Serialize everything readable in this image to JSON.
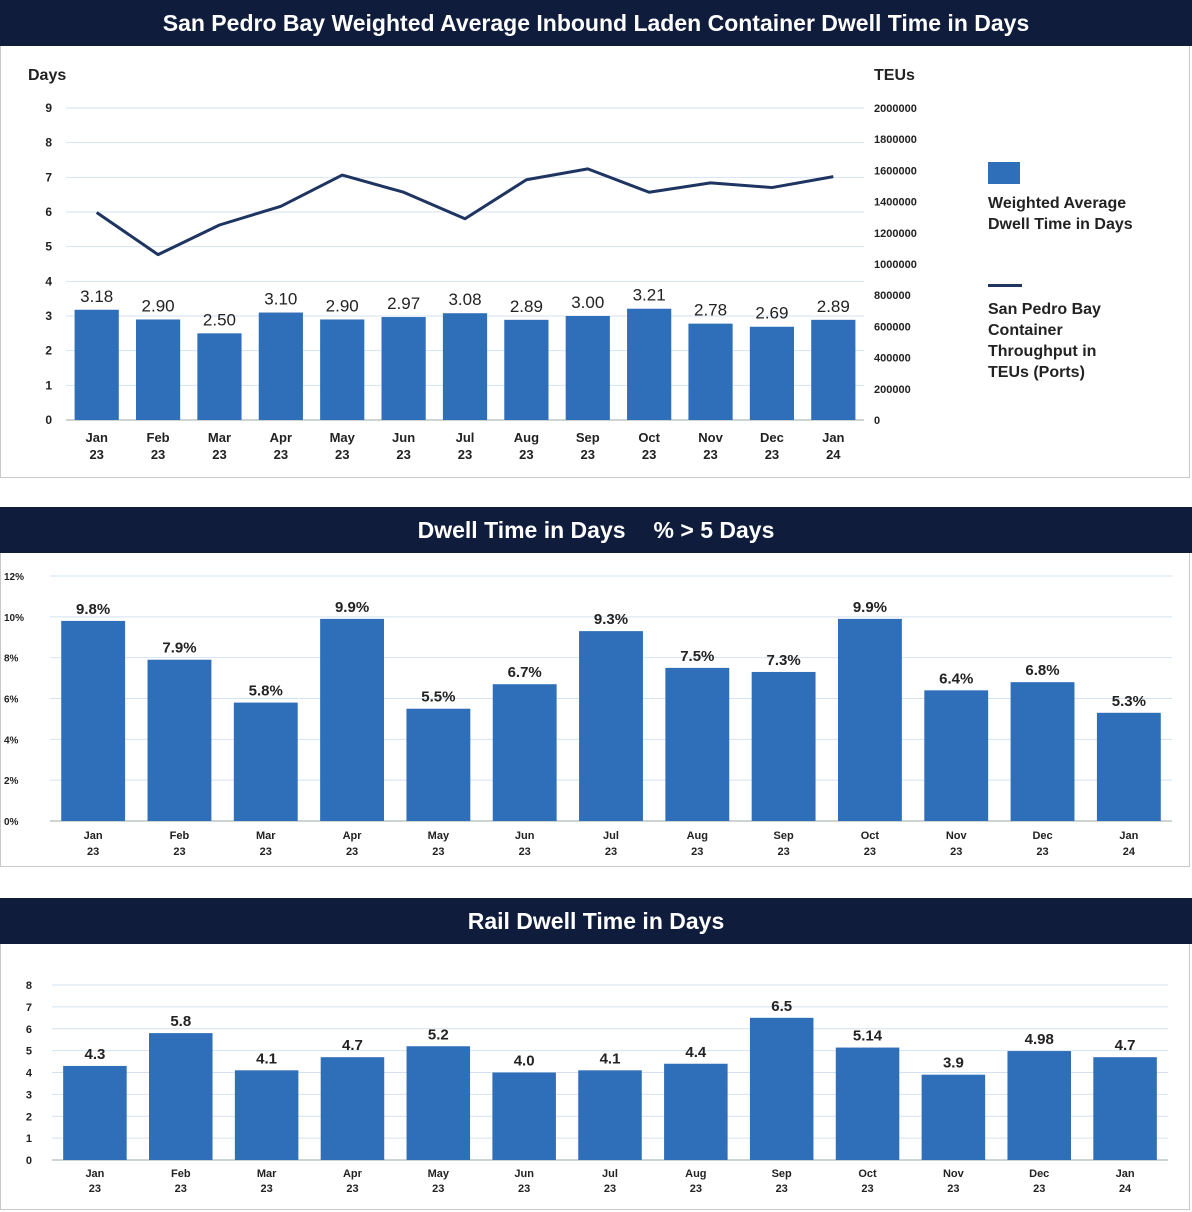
{
  "chart_data": [
    {
      "type": "bar+line",
      "title": "San Pedro Bay Weighted Average Inbound Laden Container Dwell Time in Days",
      "ylabel_left": "Days",
      "ylabel_right": "TEUs",
      "ylim_left": [
        0,
        9
      ],
      "ylim_right": [
        0,
        2000000
      ],
      "yticks_left": [
        "0",
        "1",
        "2",
        "3",
        "4",
        "5",
        "6",
        "7",
        "8",
        "9"
      ],
      "yticks_right": [
        "0",
        "200000",
        "400000",
        "600000",
        "800000",
        "1000000",
        "1200000",
        "1400000",
        "1600000",
        "1800000",
        "2000000"
      ],
      "categories": [
        [
          "Jan",
          "23"
        ],
        [
          "Feb",
          "23"
        ],
        [
          "Mar",
          "23"
        ],
        [
          "Apr",
          "23"
        ],
        [
          "May",
          "23"
        ],
        [
          "Jun",
          "23"
        ],
        [
          "Jul",
          "23"
        ],
        [
          "Aug",
          "23"
        ],
        [
          "Sep",
          "23"
        ],
        [
          "Oct",
          "23"
        ],
        [
          "Nov",
          "23"
        ],
        [
          "Dec",
          "23"
        ],
        [
          "Jan",
          "24"
        ]
      ],
      "series": [
        {
          "name": "Weighted Average Dwell Time in Days",
          "kind": "bar",
          "axis": "left",
          "values": [
            3.18,
            2.9,
            2.5,
            3.1,
            2.9,
            2.97,
            3.08,
            2.89,
            3.0,
            3.21,
            2.78,
            2.69,
            2.89
          ],
          "labels": [
            "3.18",
            "2.90",
            "2.50",
            "3.10",
            "2.90",
            "2.97",
            "3.08",
            "2.89",
            "3.00",
            "3.21",
            "2.78",
            "2.69",
            "2.89"
          ]
        },
        {
          "name": "San Pedro Bay Container Throughput in TEUs (Ports)",
          "kind": "line",
          "axis": "right",
          "values": [
            1330000,
            1060000,
            1250000,
            1370000,
            1570000,
            1460000,
            1290000,
            1540000,
            1610000,
            1460000,
            1520000,
            1490000,
            1560000
          ]
        }
      ],
      "legend_position": "right",
      "bar_color": "#2f6eb9",
      "line_color": "#1e3461"
    },
    {
      "type": "bar",
      "title": "Dwell Time in Days",
      "title_suffix": "% > 5 Days",
      "ylim": [
        0,
        12
      ],
      "yticks": [
        "0%",
        "2%",
        "4%",
        "6%",
        "8%",
        "10%",
        "12%"
      ],
      "categories": [
        [
          "Jan",
          "23"
        ],
        [
          "Feb",
          "23"
        ],
        [
          "Mar",
          "23"
        ],
        [
          "Apr",
          "23"
        ],
        [
          "May",
          "23"
        ],
        [
          "Jun",
          "23"
        ],
        [
          "Jul",
          "23"
        ],
        [
          "Aug",
          "23"
        ],
        [
          "Sep",
          "23"
        ],
        [
          "Oct",
          "23"
        ],
        [
          "Nov",
          "23"
        ],
        [
          "Dec",
          "23"
        ],
        [
          "Jan",
          "24"
        ]
      ],
      "values": [
        9.8,
        7.9,
        5.8,
        9.9,
        5.5,
        6.7,
        9.3,
        7.5,
        7.3,
        9.9,
        6.4,
        6.8,
        5.3
      ],
      "labels": [
        "9.8%",
        "7.9%",
        "5.8%",
        "9.9%",
        "5.5%",
        "6.7%",
        "9.3%",
        "7.5%",
        "7.3%",
        "9.9%",
        "6.4%",
        "6.8%",
        "5.3%"
      ],
      "bar_color": "#2f6eb9"
    },
    {
      "type": "bar",
      "title": "Rail Dwell Time in Days",
      "ylim": [
        0,
        8
      ],
      "yticks": [
        "0",
        "1",
        "2",
        "3",
        "4",
        "5",
        "6",
        "7",
        "8"
      ],
      "categories": [
        [
          "Jan",
          "23"
        ],
        [
          "Feb",
          "23"
        ],
        [
          "Mar",
          "23"
        ],
        [
          "Apr",
          "23"
        ],
        [
          "May",
          "23"
        ],
        [
          "Jun",
          "23"
        ],
        [
          "Jul",
          "23"
        ],
        [
          "Aug",
          "23"
        ],
        [
          "Sep",
          "23"
        ],
        [
          "Oct",
          "23"
        ],
        [
          "Nov",
          "23"
        ],
        [
          "Dec",
          "23"
        ],
        [
          "Jan",
          "24"
        ]
      ],
      "values": [
        4.3,
        5.8,
        4.1,
        4.7,
        5.2,
        4.0,
        4.1,
        4.4,
        6.5,
        5.14,
        3.9,
        4.98,
        4.7
      ],
      "labels": [
        "4.3",
        "5.8",
        "4.1",
        "4.7",
        "5.2",
        "4.0",
        "4.1",
        "4.4",
        "6.5",
        "5.14",
        "3.9",
        "4.98",
        "4.7"
      ],
      "bar_color": "#2f6eb9"
    }
  ]
}
